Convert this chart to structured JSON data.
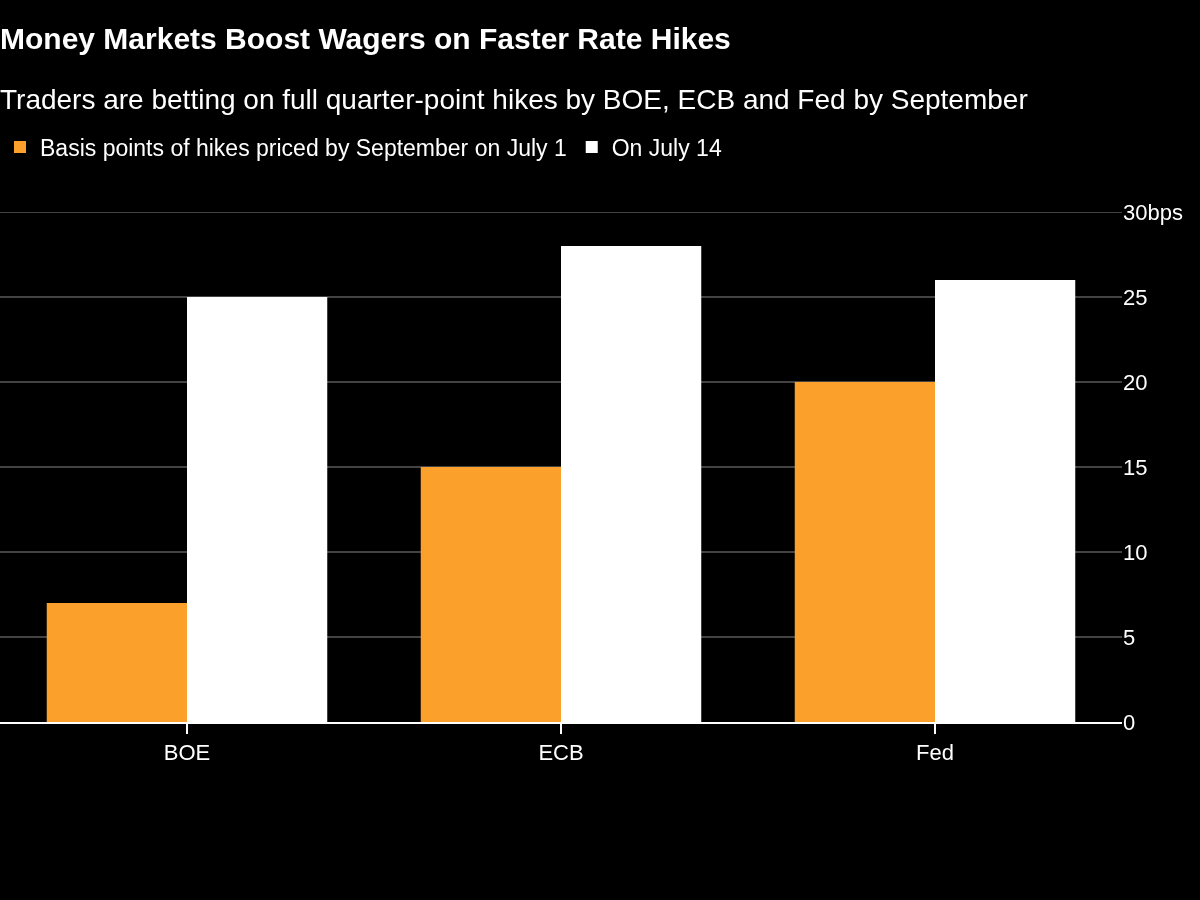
{
  "chart_data": {
    "type": "bar",
    "title": "Money Markets Boost Wagers on Faster Rate Hikes",
    "subtitle": "Traders are betting on full quarter-point hikes by BOE, ECB and Fed by September",
    "categories": [
      "BOE",
      "ECB",
      "Fed"
    ],
    "series": [
      {
        "name": "Basis points of hikes priced by September on July 1",
        "color": "#fba02b",
        "values": [
          7,
          15,
          20
        ]
      },
      {
        "name": "On July 14",
        "color": "#ffffff",
        "values": [
          25,
          28,
          26
        ]
      }
    ],
    "ylim": [
      0,
      30
    ],
    "yticks": [
      0,
      5,
      10,
      15,
      20,
      25,
      {
        "value": 30,
        "label": "30bps"
      }
    ],
    "grid": "y",
    "legend": "top left"
  }
}
